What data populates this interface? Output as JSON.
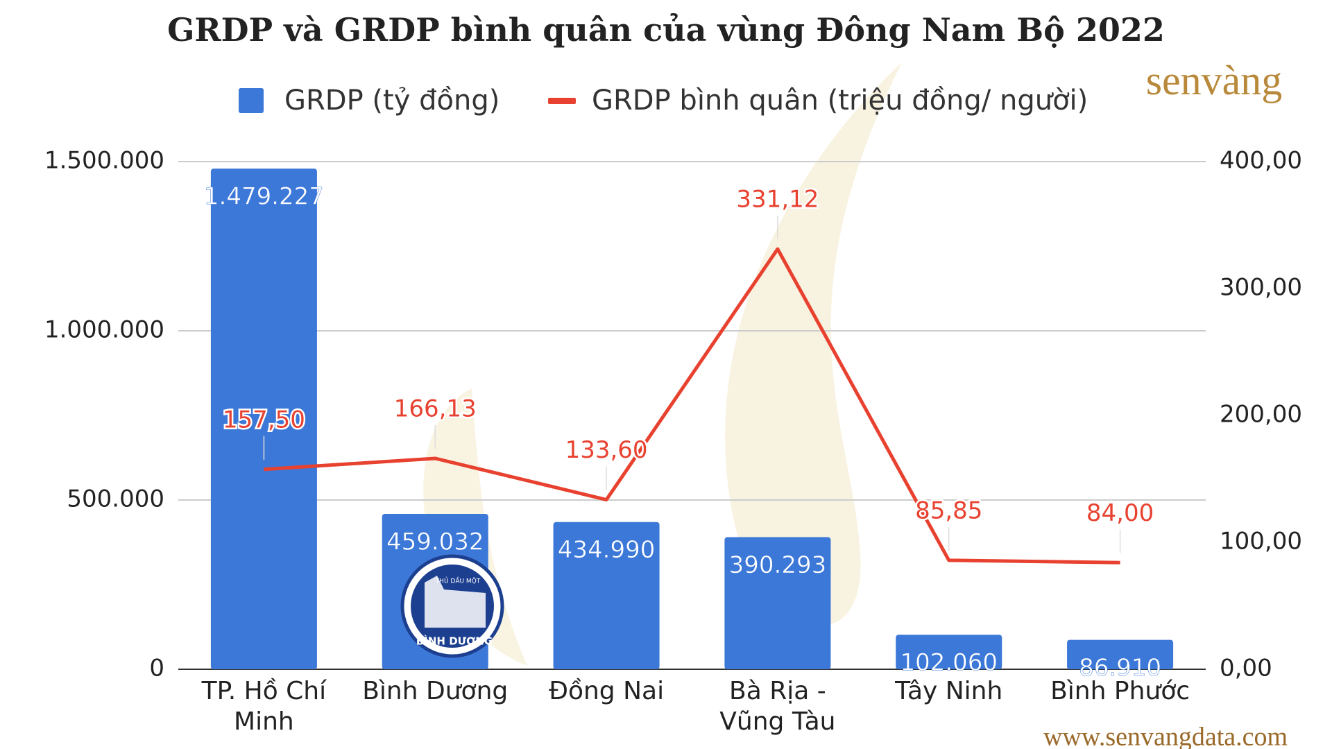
{
  "chart_data": {
    "type": "bar",
    "title": "GRDP và GRDP bình quân của vùng Đông Nam Bộ 2022",
    "categories": [
      "TP. Hồ Chí Minh",
      "Bình Dương",
      "Đồng Nai",
      "Bà Rịa - Vũng Tàu",
      "Tây Ninh",
      "Bình Phước"
    ],
    "series": [
      {
        "name": "GRDP (tỷ đồng)",
        "type": "bar",
        "color": "#3c78d8",
        "values": [
          1479227,
          459032,
          434990,
          390293,
          102060,
          86910
        ],
        "value_labels": [
          "1.479.227",
          "459.032",
          "434.990",
          "390.293",
          "102.060",
          "86.910"
        ]
      },
      {
        "name": "GRDP bình quân (triệu đồng/ người)",
        "type": "line",
        "axis": "y2",
        "color": "#e8412f",
        "values": [
          157.5,
          166.13,
          133.6,
          331.12,
          85.85,
          84.0
        ],
        "value_labels": [
          "157,50",
          "166,13",
          "133,60",
          "331,12",
          "85,85",
          "84,00"
        ]
      }
    ],
    "ylim": [
      0,
      1500000
    ],
    "yticks": [
      0,
      {
        "value": 500000,
        "label": "500.000"
      },
      {
        "value": 1000000,
        "label": "1.000.000"
      },
      {
        "value": 1500000,
        "label": "1.500.000"
      }
    ],
    "y2lim": [
      0,
      400
    ],
    "y2ticks": [
      {
        "value": 0,
        "label": "0,00"
      },
      {
        "value": 100,
        "label": "100,00"
      },
      {
        "value": 200,
        "label": "200,00"
      },
      {
        "value": 300,
        "label": "300,00"
      },
      {
        "value": 400,
        "label": "400,00"
      }
    ],
    "grid": true,
    "legend": "top"
  },
  "watermark": {
    "logo": "senvàng",
    "url": "www.senvangdata.com"
  },
  "badge": {
    "top": "THỦ DẦU MỘT",
    "bottom": "BÌNH DƯƠNG"
  }
}
